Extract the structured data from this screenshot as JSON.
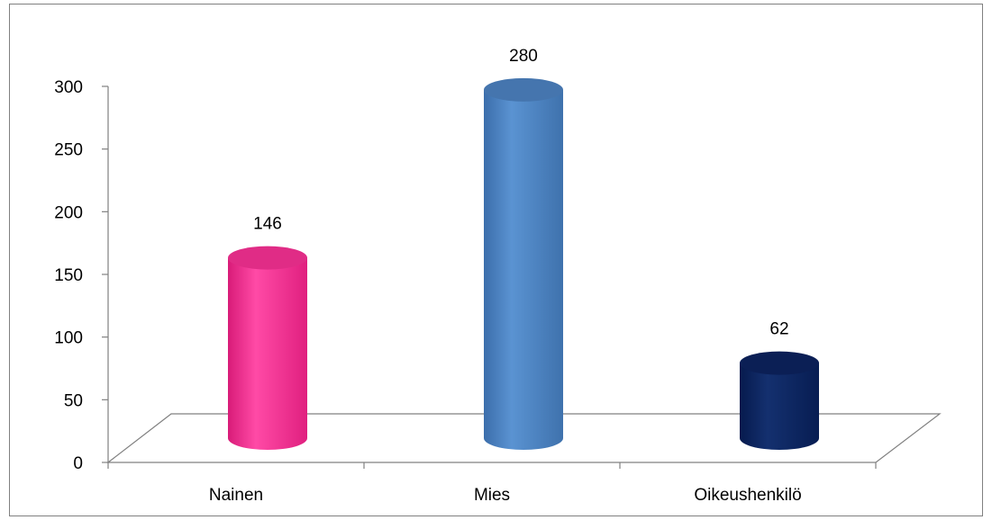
{
  "chart_data": {
    "type": "bar",
    "style": "3d-cylinder",
    "categories": [
      "Nainen",
      "Mies",
      "Oikeushenkilö"
    ],
    "values": [
      146,
      280,
      62
    ],
    "data_labels": [
      "146",
      "280",
      "62"
    ],
    "colors": [
      "#FF3399",
      "#4F86C6",
      "#0D2461"
    ],
    "ylim": [
      0,
      300
    ],
    "yticks": [
      "0",
      "50",
      "100",
      "150",
      "200",
      "250",
      "300"
    ],
    "grid": false,
    "legend": "none"
  }
}
